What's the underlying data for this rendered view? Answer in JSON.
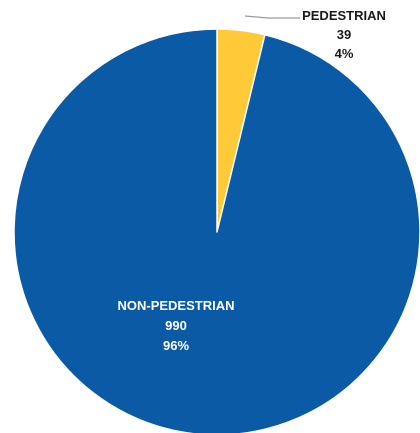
{
  "chart_data": {
    "type": "pie",
    "slices": [
      {
        "label": "PEDESTRIAN",
        "value": 39,
        "percent": "4%",
        "color": "#FFC937"
      },
      {
        "label": "NON-PEDESTRIAN",
        "value": 990,
        "percent": "96%",
        "color": "#0B5AA6"
      }
    ],
    "start_angle_deg": 0,
    "direction": "clockwise",
    "legend": "none"
  },
  "colors": {
    "label_on_light": "#1a1a1a",
    "label_on_dark": "#ffffff",
    "leader_line": "#9a9a9a",
    "slice_border": "#ffffff"
  }
}
